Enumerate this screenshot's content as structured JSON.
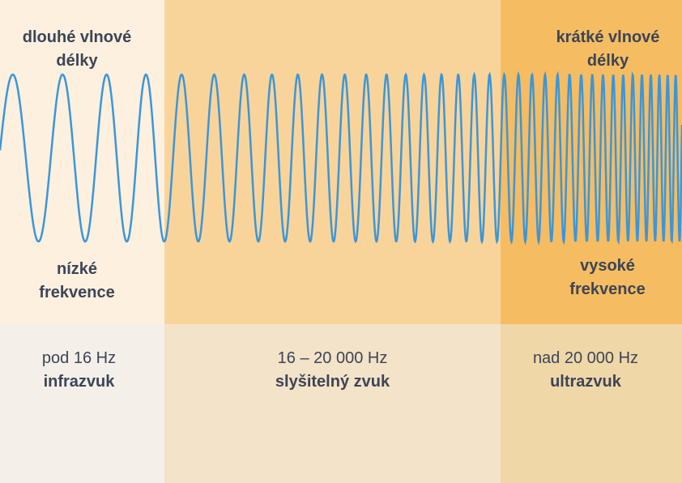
{
  "top": {
    "left_wave": "dlouhé vlnové délky",
    "right_wave": "krátké vlnové délky",
    "left_freq": "nízké frekvence",
    "right_freq": "vysoké frekvence"
  },
  "columns": [
    {
      "range": "pod 16 Hz",
      "name": "infrazvuk"
    },
    {
      "range": "16 – 20 000 Hz",
      "name": "slyšitelný zvuk"
    },
    {
      "range": "nad 20 000 Hz",
      "name": "ultrazvuk"
    }
  ]
}
